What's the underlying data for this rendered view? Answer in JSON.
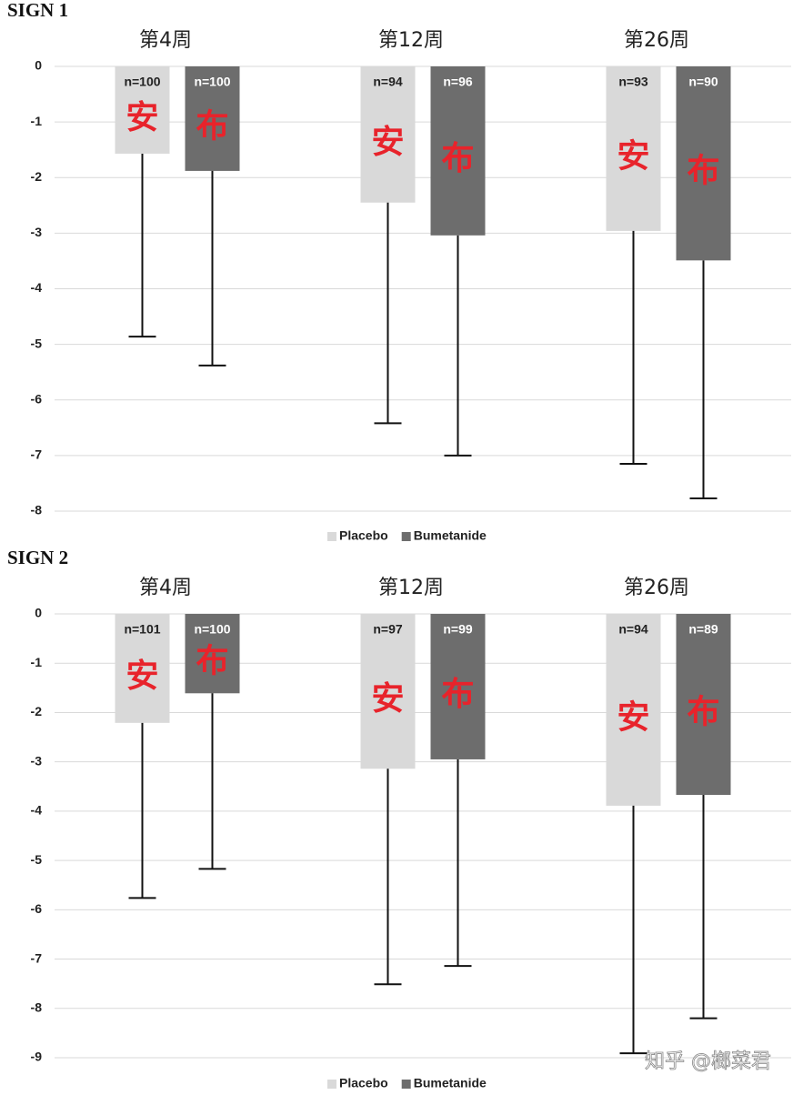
{
  "chart_data": [
    {
      "type": "bar",
      "title": "SIGN 1",
      "categories": [
        "第4周",
        "第12周",
        "第26周"
      ],
      "ylim": [
        -8,
        0
      ],
      "yticks": [
        0,
        -1,
        -2,
        -3,
        -4,
        -5,
        -6,
        -7,
        -8
      ],
      "grid": true,
      "legend": "bottom",
      "series": [
        {
          "name": "Placebo",
          "color": "#d9d9d9",
          "values": [
            -1.57,
            -2.45,
            -2.96
          ],
          "errors": [
            3.29,
            3.97,
            4.19
          ],
          "bar_labels": [
            "n=100",
            "n=94",
            "n=93"
          ],
          "mark_text": "安"
        },
        {
          "name": "Bumetanide",
          "color": "#6d6d6d",
          "values": [
            -1.88,
            -3.04,
            -3.49
          ],
          "errors": [
            3.5,
            3.96,
            4.28
          ],
          "bar_labels": [
            "n=100",
            "n=96",
            "n=90"
          ],
          "mark_text": "布"
        }
      ]
    },
    {
      "type": "bar",
      "title": "SIGN 2",
      "categories": [
        "第4周",
        "第12周",
        "第26周"
      ],
      "ylim": [
        -9,
        0
      ],
      "yticks": [
        0,
        -1,
        -2,
        -3,
        -4,
        -5,
        -6,
        -7,
        -8,
        -9
      ],
      "grid": true,
      "legend": "bottom",
      "series": [
        {
          "name": "Placebo",
          "color": "#d9d9d9",
          "values": [
            -2.21,
            -3.14,
            -3.89
          ],
          "errors": [
            3.55,
            4.37,
            5.02
          ],
          "bar_labels": [
            "n=101",
            "n=97",
            "n=94"
          ],
          "mark_text": "安"
        },
        {
          "name": "Bumetanide",
          "color": "#6d6d6d",
          "values": [
            -1.61,
            -2.95,
            -3.67
          ],
          "errors": [
            3.56,
            4.19,
            4.53
          ],
          "bar_labels": [
            "n=100",
            "n=99",
            "n=89"
          ],
          "mark_text": "布"
        }
      ]
    }
  ],
  "watermark": "知乎 @榔菜君"
}
